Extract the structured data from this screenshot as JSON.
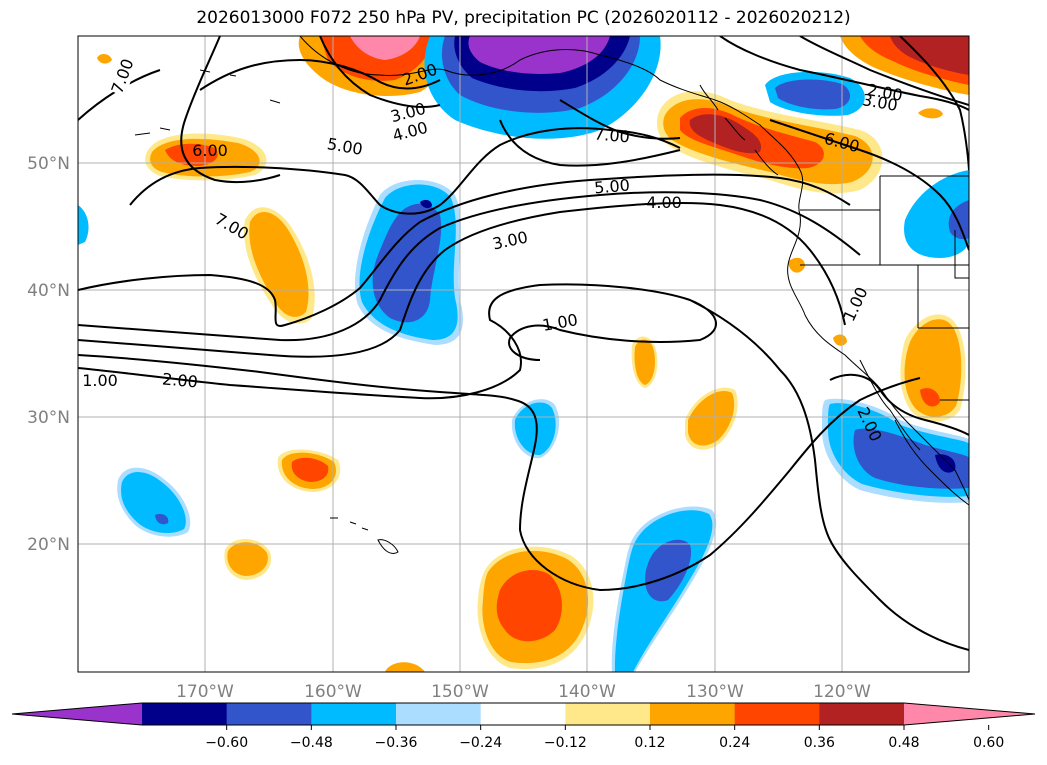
{
  "title": "2026013000 F072 250 hPa PV, precipitation PC (2026020112 - 2026020212)",
  "map": {
    "lat_ticks": [
      "50°N",
      "40°N",
      "30°N",
      "20°N"
    ],
    "lon_ticks": [
      "170°W",
      "160°W",
      "150°W",
      "140°W",
      "130°W",
      "120°W"
    ],
    "contour_labels": [
      "7.00",
      "2.00",
      "3.00",
      "4.00",
      "5.00",
      "6.00",
      "7.00",
      "2.00",
      "3.00",
      "6.00",
      "5.00",
      "4.00",
      "3.00",
      "7.00",
      "1.00",
      "1.00",
      "2.00",
      "1.00",
      "2.00"
    ]
  },
  "colorbar": {
    "tick_labels": [
      "−0.60",
      "−0.48",
      "−0.36",
      "−0.24",
      "−0.12",
      "0.12",
      "0.24",
      "0.36",
      "0.48",
      "0.60"
    ],
    "colors": [
      "#9933cc",
      "#00008b",
      "#3355cc",
      "#00bbff",
      "#aaddff",
      "#ffffff",
      "#ffe88a",
      "#ffa500",
      "#ff4500",
      "#b22222",
      "#ff88aa"
    ]
  }
}
